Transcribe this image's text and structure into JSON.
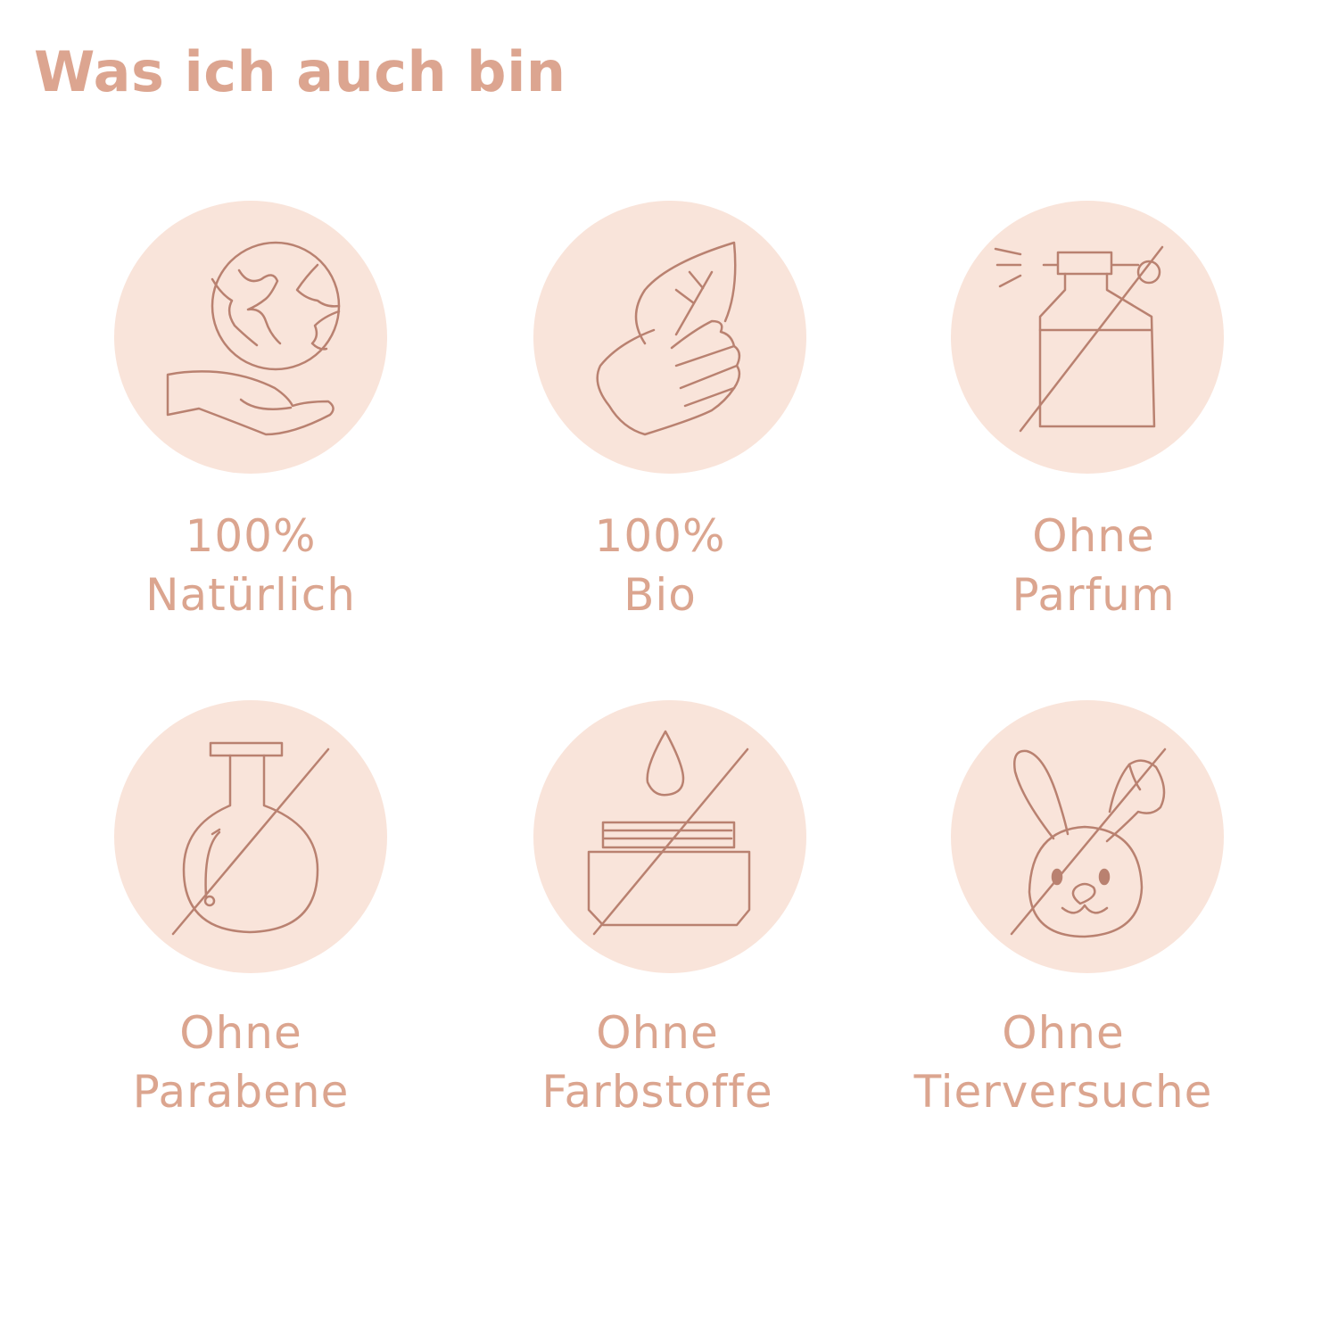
{
  "title": "Was ich auch bin",
  "colors": {
    "circle": "#f9e4da",
    "stroke": "#b98170",
    "text": "#dba58f",
    "title": "#dca590"
  },
  "items": [
    {
      "icon": "globe-in-hand-icon",
      "line1": "100%",
      "line2": "Natürlich"
    },
    {
      "icon": "leaf-in-hand-icon",
      "line1": "100%",
      "line2": "Bio"
    },
    {
      "icon": "no-perfume-spray-icon",
      "line1": "Ohne",
      "line2": "Parfum"
    },
    {
      "icon": "no-flask-icon",
      "line1": "Ohne",
      "line2": "Parabene"
    },
    {
      "icon": "no-dye-jar-icon",
      "line1": "Ohne",
      "line2": "Farbstoffe"
    },
    {
      "icon": "no-rabbit-icon",
      "line1": "Ohne",
      "line2": "Tierversuche"
    }
  ]
}
